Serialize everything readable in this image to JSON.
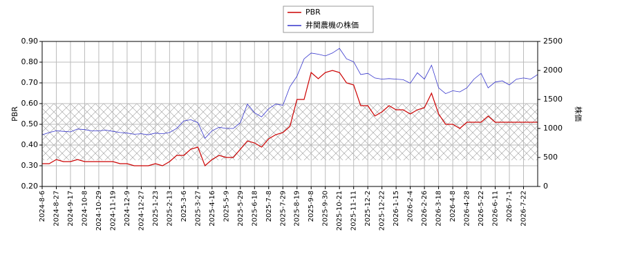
{
  "chart_data": {
    "type": "line",
    "x": [
      "2024-8-6",
      "2024-8-16",
      "2024-8-27",
      "2024-9-6",
      "2024-9-17",
      "2024-9-27",
      "2024-10-8",
      "2024-10-18",
      "2024-10-29",
      "2024-11-8",
      "2024-11-19",
      "2024-11-29",
      "2024-12-9",
      "2024-12-18",
      "2024-12-27",
      "2025-1-10",
      "2025-1-23",
      "2025-2-3",
      "2025-2-13",
      "2025-2-25",
      "2025-3-6",
      "2025-3-17",
      "2025-3-27",
      "2025-4-7",
      "2025-4-16",
      "2025-4-25",
      "2025-5-9",
      "2025-5-19",
      "2025-5-29",
      "2025-6-9",
      "2025-6-18",
      "2025-6-27",
      "2025-7-8",
      "2025-7-18",
      "2025-7-29",
      "2025-8-8",
      "2025-8-19",
      "2025-8-28",
      "2025-9-8",
      "2025-9-19",
      "2025-9-30",
      "2025-10-10",
      "2025-10-21",
      "2025-10-31",
      "2025-11-11",
      "2025-11-21",
      "2025-12-2",
      "2025-12-12",
      "2025-12-22",
      "2026-1-5",
      "2026-1-15",
      "2026-1-26",
      "2026-2-4",
      "2026-2-16",
      "2026-2-26",
      "2026-3-9",
      "2026-3-18",
      "2026-3-27",
      "2026-4-8",
      "2026-4-17",
      "2026-4-28",
      "2026-5-11",
      "2026-5-22",
      "2026-6-2",
      "2026-6-11",
      "2026-6-22",
      "2026-7-1",
      "2026-7-10",
      "2026-7-22",
      "2026-7-27",
      "2026-8-3"
    ],
    "xticks": [
      "2024-8-6",
      "2024-8-27",
      "2024-9-17",
      "2024-10-8",
      "2024-10-29",
      "2024-11-19",
      "2024-12-9",
      "2024-12-27",
      "2025-1-23",
      "2025-2-13",
      "2025-3-6",
      "2025-3-27",
      "2025-4-16",
      "2025-5-9",
      "2025-5-29",
      "2025-6-18",
      "2025-7-8",
      "2025-7-29",
      "2025-8-19",
      "2025-9-8",
      "2025-9-30",
      "2025-10-21",
      "2025-11-11",
      "2025-12-2",
      "2025-12-22",
      "2026-1-15",
      "2026-2-4",
      "2026-2-26",
      "2026-3-18",
      "2026-4-8",
      "2026-4-28",
      "2026-5-22",
      "2026-6-11",
      "2026-7-1",
      "2026-7-22"
    ],
    "ylabel": "PBR",
    "y2label": "株価",
    "ylim": [
      0.2,
      0.9
    ],
    "yticks": [
      {
        "value": 0.2,
        "label": "0.20"
      },
      {
        "value": 0.3,
        "label": "0.30"
      },
      {
        "value": 0.4,
        "label": "0.40"
      },
      {
        "value": 0.5,
        "label": "0.50"
      },
      {
        "value": 0.6,
        "label": "0.60"
      },
      {
        "value": 0.7,
        "label": "0.70"
      },
      {
        "value": 0.8,
        "label": "0.80"
      },
      {
        "value": 0.9,
        "label": "0.90"
      }
    ],
    "y2lim": [
      0,
      2500
    ],
    "y2ticks": [
      0,
      500,
      1000,
      1500,
      2000,
      2500
    ],
    "grid": true,
    "legend": "top",
    "series": [
      {
        "name": "PBR",
        "color": "#cc0000",
        "values": [
          0.31,
          0.31,
          0.33,
          0.32,
          0.32,
          0.33,
          0.32,
          0.32,
          0.32,
          0.32,
          0.32,
          0.31,
          0.31,
          0.3,
          0.3,
          0.3,
          0.31,
          0.3,
          0.32,
          0.35,
          0.35,
          0.38,
          0.39,
          0.3,
          0.33,
          0.35,
          0.34,
          0.34,
          0.38,
          0.42,
          0.41,
          0.39,
          0.43,
          0.45,
          0.46,
          0.49,
          0.62,
          0.62,
          0.75,
          0.72,
          0.75,
          0.76,
          0.75,
          0.7,
          0.69,
          0.59,
          0.59,
          0.54,
          0.56,
          0.59,
          0.57,
          0.57,
          0.55,
          0.57,
          0.58,
          0.65,
          0.55,
          0.5,
          0.5,
          0.48,
          0.51,
          0.51,
          0.51,
          0.54,
          0.51,
          0.51,
          0.51,
          0.51,
          0.51,
          0.51,
          0.51
        ]
      },
      {
        "name": "井関農機の株価",
        "color": "#3333cc",
        "axis": "y2",
        "values": [
          890,
          930,
          960,
          950,
          940,
          990,
          980,
          960,
          960,
          970,
          950,
          930,
          920,
          900,
          910,
          890,
          920,
          910,
          930,
          1000,
          1130,
          1150,
          1100,
          830,
          960,
          1020,
          1000,
          1000,
          1100,
          1420,
          1270,
          1200,
          1340,
          1420,
          1400,
          1720,
          1900,
          2200,
          2300,
          2280,
          2250,
          2300,
          2380,
          2200,
          2150,
          1930,
          1950,
          1870,
          1850,
          1860,
          1850,
          1840,
          1780,
          1960,
          1850,
          2090,
          1700,
          1600,
          1650,
          1630,
          1700,
          1850,
          1950,
          1700,
          1800,
          1820,
          1750,
          1850,
          1870,
          1850,
          1930
        ]
      }
    ]
  }
}
